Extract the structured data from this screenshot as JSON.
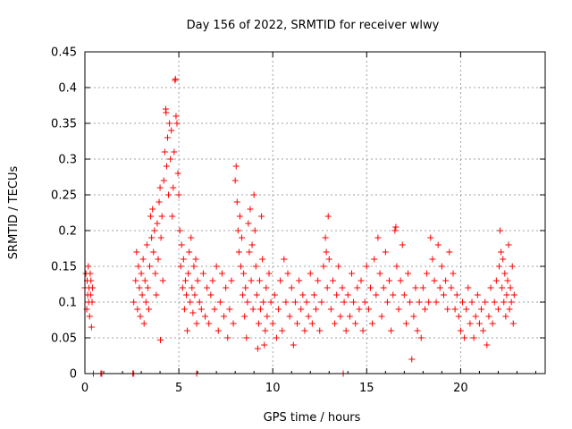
{
  "chart_data": {
    "type": "scatter",
    "title": "Day 156 of 2022, SRMTID for receiver wlwy",
    "xlabel": "GPS time / hours",
    "ylabel": "SRMTID / TECUs",
    "xlim": [
      0,
      24.5
    ],
    "ylim": [
      0,
      0.45
    ],
    "xticks": [
      0,
      5,
      10,
      15,
      20
    ],
    "xtick_labels": [
      "0",
      "5",
      "10",
      "15",
      "20"
    ],
    "yticks": [
      0,
      0.05,
      0.1,
      0.15,
      0.2,
      0.25,
      0.3,
      0.35,
      0.4,
      0.45
    ],
    "ytick_labels": [
      "0",
      "0.05",
      "0.1",
      "0.15",
      "0.2",
      "0.25",
      "0.3",
      "0.35",
      "0.4",
      "0.45"
    ],
    "grid": true,
    "marker": "plus",
    "color": "#ff0000",
    "series": [
      {
        "name": "SRMTID",
        "points": [
          [
            0.0,
            0.12
          ],
          [
            0.05,
            0.14
          ],
          [
            0.1,
            0.09
          ],
          [
            0.12,
            0.13
          ],
          [
            0.15,
            0.11
          ],
          [
            0.18,
            0.15
          ],
          [
            0.2,
            0.1
          ],
          [
            0.22,
            0.12
          ],
          [
            0.25,
            0.08
          ],
          [
            0.28,
            0.14
          ],
          [
            0.3,
            0.11
          ],
          [
            0.32,
            0.13
          ],
          [
            0.35,
            0.065
          ],
          [
            0.38,
            0.1
          ],
          [
            0.4,
            0.12
          ],
          [
            0.45,
            0.0
          ],
          [
            0.85,
            0.0
          ],
          [
            0.9,
            0.0
          ],
          [
            2.55,
            0.0
          ],
          [
            2.6,
            0.0
          ],
          [
            5.95,
            0.0
          ],
          [
            13.75,
            0.0
          ],
          [
            2.6,
            0.1
          ],
          [
            2.7,
            0.13
          ],
          [
            2.75,
            0.17
          ],
          [
            2.8,
            0.09
          ],
          [
            2.85,
            0.15
          ],
          [
            2.9,
            0.12
          ],
          [
            2.95,
            0.08
          ],
          [
            3.0,
            0.14
          ],
          [
            3.05,
            0.11
          ],
          [
            3.1,
            0.16
          ],
          [
            3.15,
            0.07
          ],
          [
            3.2,
            0.13
          ],
          [
            3.25,
            0.1
          ],
          [
            3.3,
            0.18
          ],
          [
            3.35,
            0.12
          ],
          [
            3.4,
            0.09
          ],
          [
            3.45,
            0.15
          ],
          [
            3.5,
            0.22
          ],
          [
            3.55,
            0.19
          ],
          [
            3.6,
            0.23
          ],
          [
            3.65,
            0.17
          ],
          [
            3.7,
            0.2
          ],
          [
            3.75,
            0.14
          ],
          [
            3.8,
            0.11
          ],
          [
            3.85,
            0.21
          ],
          [
            3.9,
            0.16
          ],
          [
            3.95,
            0.24
          ],
          [
            4.0,
            0.26
          ],
          [
            4.02,
            0.047
          ],
          [
            4.05,
            0.19
          ],
          [
            4.1,
            0.22
          ],
          [
            4.15,
            0.13
          ],
          [
            4.2,
            0.27
          ],
          [
            4.25,
            0.31
          ],
          [
            4.3,
            0.37
          ],
          [
            4.32,
            0.365
          ],
          [
            4.35,
            0.29
          ],
          [
            4.4,
            0.33
          ],
          [
            4.45,
            0.25
          ],
          [
            4.5,
            0.35
          ],
          [
            4.55,
            0.3
          ],
          [
            4.6,
            0.34
          ],
          [
            4.65,
            0.22
          ],
          [
            4.7,
            0.26
          ],
          [
            4.75,
            0.31
          ],
          [
            4.8,
            0.41
          ],
          [
            4.82,
            0.412
          ],
          [
            4.85,
            0.36
          ],
          [
            4.9,
            0.35
          ],
          [
            4.95,
            0.28
          ],
          [
            5.0,
            0.25
          ],
          [
            5.05,
            0.2
          ],
          [
            5.1,
            0.15
          ],
          [
            5.15,
            0.18
          ],
          [
            5.2,
            0.12
          ],
          [
            5.25,
            0.16
          ],
          [
            5.3,
            0.09
          ],
          [
            5.35,
            0.13
          ],
          [
            5.4,
            0.11
          ],
          [
            5.45,
            0.06
          ],
          [
            5.5,
            0.14
          ],
          [
            5.55,
            0.17
          ],
          [
            5.6,
            0.1
          ],
          [
            5.65,
            0.19
          ],
          [
            5.7,
            0.12
          ],
          [
            5.75,
            0.085
          ],
          [
            5.8,
            0.15
          ],
          [
            5.85,
            0.11
          ],
          [
            5.9,
            0.16
          ],
          [
            5.95,
            0.07
          ],
          [
            6.0,
            0.13
          ],
          [
            6.1,
            0.1
          ],
          [
            6.2,
            0.09
          ],
          [
            6.3,
            0.14
          ],
          [
            6.4,
            0.08
          ],
          [
            6.5,
            0.12
          ],
          [
            6.6,
            0.07
          ],
          [
            6.7,
            0.11
          ],
          [
            6.8,
            0.13
          ],
          [
            6.9,
            0.09
          ],
          [
            7.0,
            0.15
          ],
          [
            7.1,
            0.06
          ],
          [
            7.2,
            0.1
          ],
          [
            7.3,
            0.14
          ],
          [
            7.4,
            0.08
          ],
          [
            7.5,
            0.12
          ],
          [
            7.6,
            0.05
          ],
          [
            7.7,
            0.09
          ],
          [
            7.8,
            0.13
          ],
          [
            7.9,
            0.07
          ],
          [
            8.0,
            0.27
          ],
          [
            8.05,
            0.29
          ],
          [
            8.1,
            0.24
          ],
          [
            8.15,
            0.2
          ],
          [
            8.2,
            0.17
          ],
          [
            8.25,
            0.22
          ],
          [
            8.3,
            0.15
          ],
          [
            8.35,
            0.19
          ],
          [
            8.4,
            0.11
          ],
          [
            8.45,
            0.14
          ],
          [
            8.5,
            0.08
          ],
          [
            8.55,
            0.12
          ],
          [
            8.6,
            0.05
          ],
          [
            8.65,
            0.1
          ],
          [
            8.7,
            0.21
          ],
          [
            8.75,
            0.17
          ],
          [
            8.8,
            0.23
          ],
          [
            8.85,
            0.13
          ],
          [
            8.9,
            0.18
          ],
          [
            8.95,
            0.09
          ],
          [
            9.0,
            0.25
          ],
          [
            9.05,
            0.2
          ],
          [
            9.1,
            0.15
          ],
          [
            9.15,
            0.11
          ],
          [
            9.2,
            0.035
          ],
          [
            9.25,
            0.07
          ],
          [
            9.3,
            0.13
          ],
          [
            9.35,
            0.09
          ],
          [
            9.4,
            0.22
          ],
          [
            9.45,
            0.16
          ],
          [
            9.5,
            0.1
          ],
          [
            9.55,
            0.04
          ],
          [
            9.6,
            0.06
          ],
          [
            9.65,
            0.12
          ],
          [
            9.7,
            0.08
          ],
          [
            9.8,
            0.14
          ],
          [
            9.9,
            0.1
          ],
          [
            10.0,
            0.07
          ],
          [
            10.1,
            0.11
          ],
          [
            10.2,
            0.05
          ],
          [
            10.3,
            0.09
          ],
          [
            10.4,
            0.13
          ],
          [
            10.5,
            0.06
          ],
          [
            10.6,
            0.16
          ],
          [
            10.7,
            0.1
          ],
          [
            10.8,
            0.14
          ],
          [
            10.9,
            0.08
          ],
          [
            11.0,
            0.12
          ],
          [
            11.1,
            0.04
          ],
          [
            11.2,
            0.1
          ],
          [
            11.3,
            0.07
          ],
          [
            11.4,
            0.13
          ],
          [
            11.5,
            0.09
          ],
          [
            11.6,
            0.11
          ],
          [
            11.7,
            0.06
          ],
          [
            11.8,
            0.1
          ],
          [
            11.9,
            0.08
          ],
          [
            12.0,
            0.14
          ],
          [
            12.1,
            0.07
          ],
          [
            12.2,
            0.11
          ],
          [
            12.3,
            0.09
          ],
          [
            12.4,
            0.13
          ],
          [
            12.5,
            0.06
          ],
          [
            12.6,
            0.1
          ],
          [
            12.7,
            0.15
          ],
          [
            12.8,
            0.19
          ],
          [
            12.85,
            0.17
          ],
          [
            12.9,
            0.12
          ],
          [
            12.95,
            0.22
          ],
          [
            13.0,
            0.16
          ],
          [
            13.1,
            0.09
          ],
          [
            13.2,
            0.13
          ],
          [
            13.3,
            0.07
          ],
          [
            13.4,
            0.11
          ],
          [
            13.5,
            0.15
          ],
          [
            13.6,
            0.08
          ],
          [
            13.7,
            0.12
          ],
          [
            13.8,
            0.1
          ],
          [
            13.9,
            0.06
          ],
          [
            14.0,
            0.11
          ],
          [
            14.1,
            0.08
          ],
          [
            14.2,
            0.14
          ],
          [
            14.3,
            0.1
          ],
          [
            14.4,
            0.07
          ],
          [
            14.5,
            0.12
          ],
          [
            14.6,
            0.09
          ],
          [
            14.7,
            0.13
          ],
          [
            14.8,
            0.06
          ],
          [
            14.9,
            0.1
          ],
          [
            15.0,
            0.15
          ],
          [
            15.1,
            0.09
          ],
          [
            15.2,
            0.12
          ],
          [
            15.3,
            0.07
          ],
          [
            15.4,
            0.16
          ],
          [
            15.5,
            0.11
          ],
          [
            15.6,
            0.19
          ],
          [
            15.7,
            0.14
          ],
          [
            15.8,
            0.08
          ],
          [
            15.9,
            0.12
          ],
          [
            16.0,
            0.17
          ],
          [
            16.1,
            0.1
          ],
          [
            16.2,
            0.13
          ],
          [
            16.3,
            0.06
          ],
          [
            16.4,
            0.11
          ],
          [
            16.5,
            0.2
          ],
          [
            16.55,
            0.205
          ],
          [
            16.6,
            0.15
          ],
          [
            16.7,
            0.09
          ],
          [
            16.8,
            0.13
          ],
          [
            16.9,
            0.18
          ],
          [
            17.0,
            0.11
          ],
          [
            17.1,
            0.07
          ],
          [
            17.2,
            0.14
          ],
          [
            17.3,
            0.1
          ],
          [
            17.4,
            0.02
          ],
          [
            17.5,
            0.08
          ],
          [
            17.6,
            0.12
          ],
          [
            17.7,
            0.06
          ],
          [
            17.8,
            0.1
          ],
          [
            17.9,
            0.05
          ],
          [
            18.0,
            0.12
          ],
          [
            18.1,
            0.09
          ],
          [
            18.2,
            0.14
          ],
          [
            18.3,
            0.1
          ],
          [
            18.4,
            0.19
          ],
          [
            18.5,
            0.16
          ],
          [
            18.6,
            0.13
          ],
          [
            18.7,
            0.1
          ],
          [
            18.8,
            0.18
          ],
          [
            18.9,
            0.12
          ],
          [
            19.0,
            0.15
          ],
          [
            19.1,
            0.11
          ],
          [
            19.2,
            0.13
          ],
          [
            19.3,
            0.09
          ],
          [
            19.4,
            0.17
          ],
          [
            19.5,
            0.12
          ],
          [
            19.6,
            0.14
          ],
          [
            19.7,
            0.09
          ],
          [
            19.8,
            0.11
          ],
          [
            19.9,
            0.08
          ],
          [
            20.0,
            0.06
          ],
          [
            20.1,
            0.1
          ],
          [
            20.2,
            0.05
          ],
          [
            20.3,
            0.09
          ],
          [
            20.4,
            0.12
          ],
          [
            20.5,
            0.07
          ],
          [
            20.6,
            0.1
          ],
          [
            20.7,
            0.05
          ],
          [
            20.8,
            0.08
          ],
          [
            20.9,
            0.11
          ],
          [
            21.0,
            0.07
          ],
          [
            21.1,
            0.09
          ],
          [
            21.2,
            0.06
          ],
          [
            21.3,
            0.1
          ],
          [
            21.4,
            0.04
          ],
          [
            21.5,
            0.08
          ],
          [
            21.6,
            0.12
          ],
          [
            21.7,
            0.07
          ],
          [
            21.8,
            0.1
          ],
          [
            21.9,
            0.13
          ],
          [
            22.0,
            0.09
          ],
          [
            22.05,
            0.15
          ],
          [
            22.1,
            0.2
          ],
          [
            22.15,
            0.17
          ],
          [
            22.2,
            0.12
          ],
          [
            22.25,
            0.16
          ],
          [
            22.3,
            0.1
          ],
          [
            22.35,
            0.14
          ],
          [
            22.4,
            0.08
          ],
          [
            22.45,
            0.11
          ],
          [
            22.5,
            0.13
          ],
          [
            22.55,
            0.18
          ],
          [
            22.6,
            0.09
          ],
          [
            22.65,
            0.12
          ],
          [
            22.7,
            0.1
          ],
          [
            22.75,
            0.15
          ],
          [
            22.8,
            0.07
          ],
          [
            22.85,
            0.11
          ]
        ]
      }
    ]
  }
}
